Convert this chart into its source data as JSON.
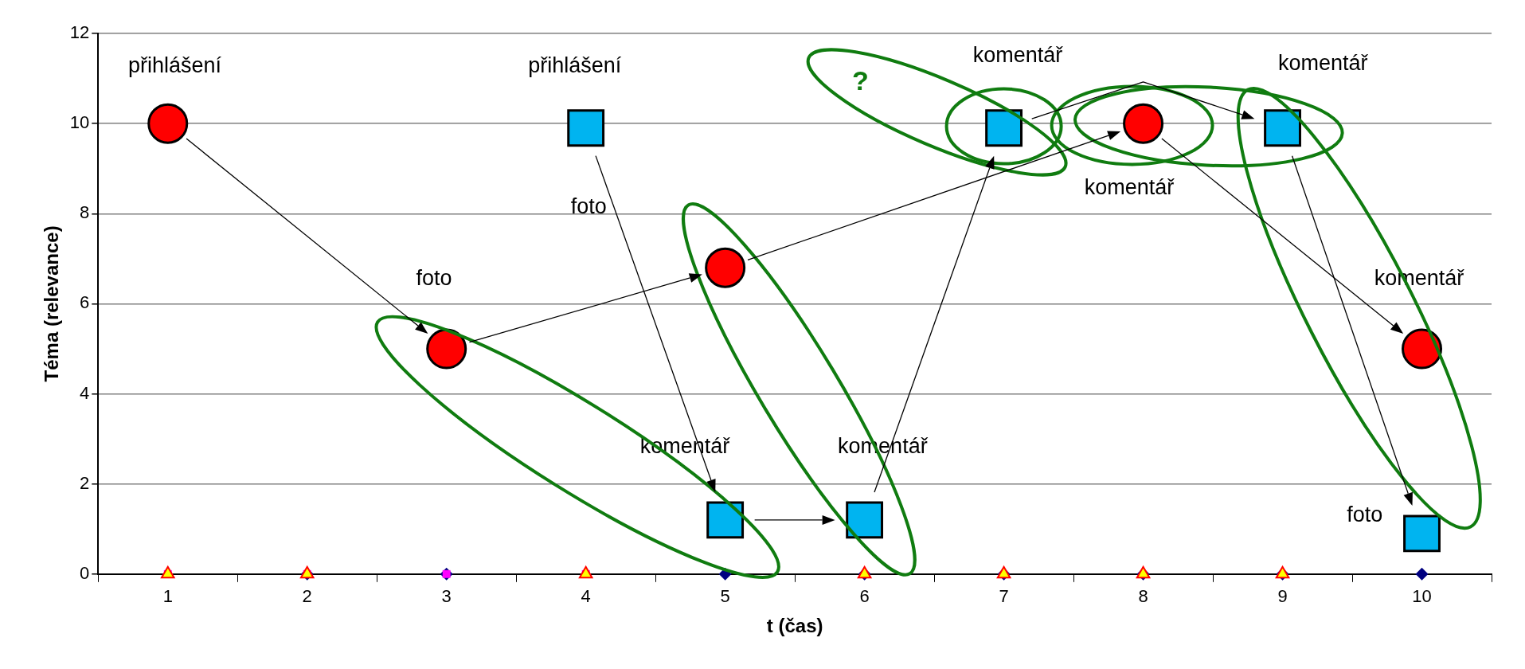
{
  "chart_data": {
    "type": "scatter",
    "xlabel": "t (čas)",
    "ylabel": "Téma (relevance)",
    "categories": [
      "1",
      "2",
      "3",
      "4",
      "5",
      "6",
      "7",
      "8",
      "9",
      "10"
    ],
    "ylim": [
      0,
      12
    ],
    "yticks": [
      0,
      2,
      4,
      6,
      8,
      10,
      12
    ],
    "grid": "y",
    "legend": false,
    "series": [
      {
        "x": [
          "1",
          "3",
          "5",
          "8",
          "10"
        ],
        "values": [
          10,
          5,
          6.8,
          10,
          5
        ],
        "marker": "circle",
        "color": "#ff0000"
      },
      {
        "x": [
          "4",
          "5",
          "6",
          "7",
          "9",
          "10"
        ],
        "values": [
          9.9,
          1.2,
          1.2,
          9.9,
          9.9,
          0.9
        ],
        "marker": "square",
        "color": "#00b4f0"
      },
      {
        "x": [
          "2",
          "3",
          "5",
          "6",
          "7",
          "8",
          "9",
          "10"
        ],
        "values": [
          0,
          0,
          0,
          0,
          0,
          0,
          0,
          0
        ],
        "marker": "diamond",
        "color": "#000080"
      },
      {
        "x": [
          "1",
          "2",
          "3",
          "4"
        ],
        "values": [
          0,
          0,
          0,
          0
        ],
        "marker": "square",
        "color": "#ff00ff"
      },
      {
        "x": [
          "1",
          "2",
          "4",
          "6",
          "7",
          "8",
          "9"
        ],
        "values": [
          0,
          0,
          0,
          0,
          0,
          0,
          0
        ],
        "marker": "triangle",
        "color": "#ffff00"
      }
    ],
    "annotations": [
      "přihlášení",
      "přihlášení",
      "foto",
      "foto",
      "komentář",
      "komentář",
      "komentář",
      "komentář",
      "komentář",
      "komentář",
      "foto",
      "?"
    ]
  }
}
